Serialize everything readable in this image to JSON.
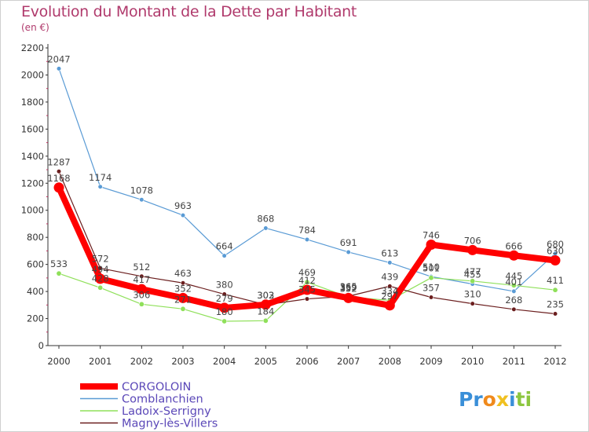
{
  "chart_data": {
    "type": "line",
    "title": "Evolution du Montant de la Dette par Habitant",
    "subtitle": "(en €)",
    "x": [
      "2000",
      "2001",
      "2002",
      "2003",
      "2004",
      "2005",
      "2006",
      "2007",
      "2008",
      "2009",
      "2010",
      "2011",
      "2012"
    ],
    "ylim": [
      0,
      2200
    ],
    "yticks": [
      0,
      200,
      400,
      600,
      800,
      1000,
      1200,
      1400,
      1600,
      1800,
      2000,
      2200
    ],
    "grid": false,
    "legend_position": "bottom-left",
    "series": [
      {
        "name": "CORGOLOIN",
        "color": "#ff0000",
        "values": [
          1168,
          494,
          417,
          352,
          279,
          303,
          412,
          352,
          297,
          746,
          706,
          666,
          630
        ]
      },
      {
        "name": "Comblanchien",
        "color": "#5a9bd5",
        "values": [
          2047,
          1174,
          1078,
          963,
          664,
          868,
          784,
          691,
          613,
          510,
          455,
          401,
          680
        ]
      },
      {
        "name": "Ladoix-Serrigny",
        "color": "#8fe05a",
        "values": [
          533,
          428,
          306,
          271,
          180,
          184,
          469,
          359,
          334,
          501,
          477,
          445,
          411
        ]
      },
      {
        "name": "Magny-lès-Villers",
        "color": "#6b1e1e",
        "values": [
          1287,
          572,
          512,
          463,
          380,
          302,
          345,
          365,
          439,
          357,
          310,
          268,
          235
        ]
      }
    ]
  },
  "brand": {
    "logo_text": "Proxiti"
  }
}
